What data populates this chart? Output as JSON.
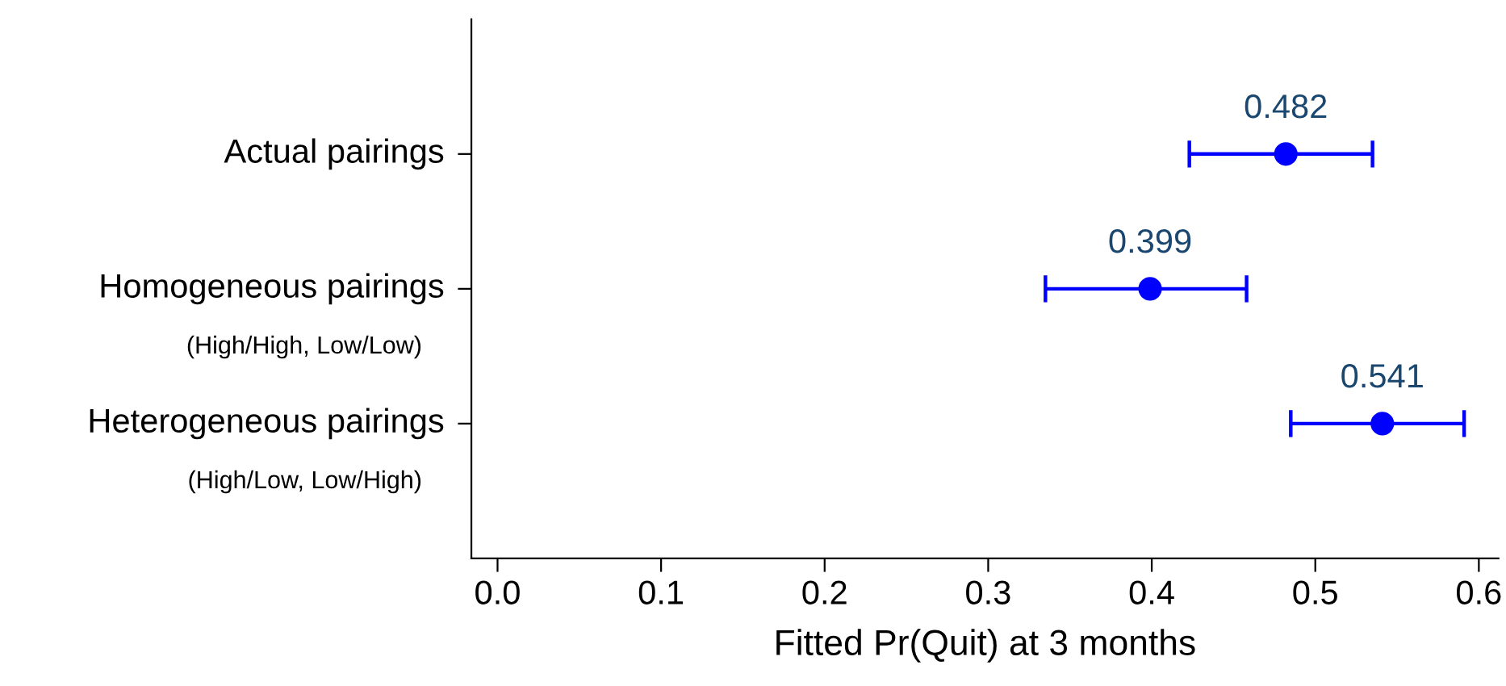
{
  "chart_data": {
    "type": "scatter",
    "orientation": "horizontal",
    "xlabel": "Fitted Pr(Quit) at 3 months",
    "categories": [
      "Actual pairings",
      "Homogeneous pairings\n(High/High, Low/Low)",
      "Heterogeneous pairings\n(High/Low, Low/High)"
    ],
    "values": [
      0.482,
      0.399,
      0.541
    ],
    "errors": [
      [
        0.423,
        0.535
      ],
      [
        0.335,
        0.458
      ],
      [
        0.485,
        0.591
      ]
    ],
    "color": "#0000ff",
    "data_labels": true,
    "marker": "circle",
    "grid": false,
    "legend": false,
    "xlim": [
      -0.016,
      0.612
    ],
    "xticks": [
      {
        "value": 0,
        "label": "0.0"
      },
      0.1,
      0.2,
      0.3,
      0.4,
      0.5,
      0.6
    ]
  }
}
